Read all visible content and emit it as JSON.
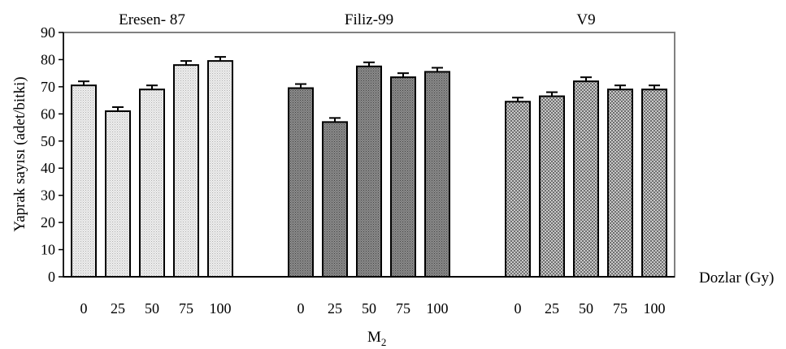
{
  "chart_data": {
    "type": "bar",
    "title": "",
    "xlabel": "M",
    "xlabel_subscript": "2",
    "ylabel": "Yaprak sayısı (adet/bitki)",
    "dose_axis_label": "Dozlar (Gy)",
    "ylim": [
      0,
      90
    ],
    "yticks": [
      0,
      10,
      20,
      30,
      40,
      50,
      60,
      70,
      80,
      90
    ],
    "grid": false,
    "legend": "none",
    "groups": [
      {
        "name": "Eresen- 87",
        "doses": [
          "0",
          "25",
          "50",
          "75",
          "100"
        ],
        "values": [
          70.5,
          61,
          69,
          78,
          79.5
        ],
        "errors": [
          1.5,
          1.5,
          1.5,
          1.5,
          1.5
        ],
        "fill_color": "#e6e6e6",
        "pattern": "light-dots"
      },
      {
        "name": "Filiz-99",
        "doses": [
          "0",
          "25",
          "50",
          "75",
          "100"
        ],
        "values": [
          69.5,
          57,
          77.5,
          73.5,
          75.5
        ],
        "errors": [
          1.5,
          1.5,
          1.5,
          1.5,
          1.5
        ],
        "fill_color": "#777777",
        "pattern": "dark-dots"
      },
      {
        "name": "V9",
        "doses": [
          "0",
          "25",
          "50",
          "75",
          "100"
        ],
        "values": [
          64.5,
          66.5,
          72,
          69,
          69
        ],
        "errors": [
          1.5,
          1.5,
          1.5,
          1.5,
          1.5
        ],
        "fill_color": "#a8a8a8",
        "pattern": "crosshatch-dots"
      }
    ]
  }
}
